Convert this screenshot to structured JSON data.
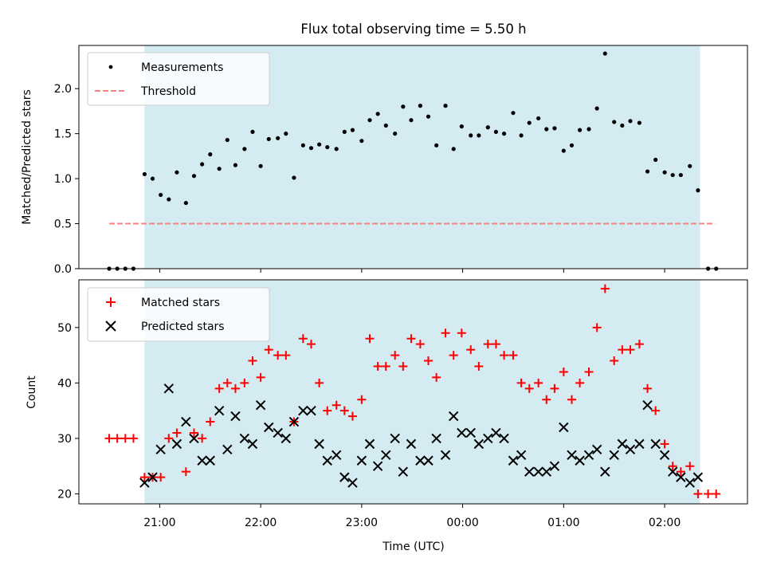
{
  "chart_data": [
    {
      "type": "scatter",
      "title": "Flux total observing time = 5.50 h",
      "ylabel": "Matched/Predicted stars",
      "xlabel": "",
      "ylim": [
        0,
        2.48
      ],
      "yticks": [
        0.0,
        0.5,
        1.0,
        1.5,
        2.0
      ],
      "ytick_labels": [
        "0.0",
        "0.5",
        "1.0",
        "1.5",
        "2.0"
      ],
      "x_range_hours": [
        -3.8,
        2.82
      ],
      "observing_window": [
        -3.15,
        2.35
      ],
      "threshold": {
        "value": 0.5,
        "x_range": [
          -3.5,
          2.5
        ]
      },
      "legend": {
        "placement": "top-left",
        "entries": [
          "Measurements",
          "Threshold"
        ]
      },
      "colors": {
        "measurements": "#000000",
        "threshold": "#ff7f7f",
        "window": "#add8e6"
      },
      "series": [
        {
          "name": "Measurements",
          "points": [
            [
              -3.5,
              0
            ],
            [
              -3.42,
              0
            ],
            [
              -3.34,
              0
            ],
            [
              -3.26,
              0
            ],
            [
              -3.15,
              1.05
            ],
            [
              -3.07,
              1.0
            ],
            [
              -2.99,
              0.82
            ],
            [
              -2.91,
              0.77
            ],
            [
              -2.83,
              1.07
            ],
            [
              -2.74,
              0.73
            ],
            [
              -2.66,
              1.03
            ],
            [
              -2.58,
              1.16
            ],
            [
              -2.5,
              1.27
            ],
            [
              -2.41,
              1.11
            ],
            [
              -2.33,
              1.43
            ],
            [
              -2.25,
              1.15
            ],
            [
              -2.16,
              1.33
            ],
            [
              -2.08,
              1.52
            ],
            [
              -2.0,
              1.14
            ],
            [
              -1.92,
              1.44
            ],
            [
              -1.83,
              1.45
            ],
            [
              -1.75,
              1.5
            ],
            [
              -1.67,
              1.01
            ],
            [
              -1.58,
              1.37
            ],
            [
              -1.5,
              1.34
            ],
            [
              -1.42,
              1.38
            ],
            [
              -1.34,
              1.35
            ],
            [
              -1.25,
              1.33
            ],
            [
              -1.17,
              1.52
            ],
            [
              -1.09,
              1.54
            ],
            [
              -1.0,
              1.42
            ],
            [
              -0.92,
              1.65
            ],
            [
              -0.84,
              1.72
            ],
            [
              -0.76,
              1.59
            ],
            [
              -0.67,
              1.5
            ],
            [
              -0.59,
              1.8
            ],
            [
              -0.51,
              1.65
            ],
            [
              -0.42,
              1.81
            ],
            [
              -0.34,
              1.69
            ],
            [
              -0.26,
              1.37
            ],
            [
              -0.17,
              1.81
            ],
            [
              -0.09,
              1.33
            ],
            [
              -0.01,
              1.58
            ],
            [
              0.08,
              1.48
            ],
            [
              0.16,
              1.48
            ],
            [
              0.25,
              1.57
            ],
            [
              0.33,
              1.52
            ],
            [
              0.41,
              1.5
            ],
            [
              0.5,
              1.73
            ],
            [
              0.58,
              1.48
            ],
            [
              0.66,
              1.62
            ],
            [
              0.75,
              1.67
            ],
            [
              0.83,
              1.55
            ],
            [
              0.91,
              1.56
            ],
            [
              1.0,
              1.31
            ],
            [
              1.08,
              1.37
            ],
            [
              1.16,
              1.54
            ],
            [
              1.25,
              1.55
            ],
            [
              1.33,
              1.78
            ],
            [
              1.41,
              2.39
            ],
            [
              1.5,
              1.63
            ],
            [
              1.58,
              1.59
            ],
            [
              1.66,
              1.64
            ],
            [
              1.75,
              1.62
            ],
            [
              1.83,
              1.08
            ],
            [
              1.91,
              1.21
            ],
            [
              2.0,
              1.07
            ],
            [
              2.08,
              1.04
            ],
            [
              2.16,
              1.04
            ],
            [
              2.25,
              1.14
            ],
            [
              2.33,
              0.87
            ],
            [
              2.43,
              0
            ],
            [
              2.51,
              0
            ]
          ]
        }
      ]
    },
    {
      "type": "scatter",
      "ylabel": "Count",
      "xlabel": "Time (UTC)",
      "ylim": [
        18.2,
        58.6
      ],
      "yticks": [
        20,
        30,
        40,
        50
      ],
      "ytick_labels": [
        "20",
        "30",
        "40",
        "50"
      ],
      "x_range_hours": [
        -3.8,
        2.82
      ],
      "xticks_hours": [
        -3,
        -2,
        -1,
        0,
        1,
        2
      ],
      "xtick_labels": [
        "21:00",
        "22:00",
        "23:00",
        "00:00",
        "01:00",
        "02:00"
      ],
      "observing_window": [
        -3.15,
        2.35
      ],
      "legend": {
        "placement": "top-left",
        "entries": [
          "Matched stars",
          "Predicted stars"
        ]
      },
      "colors": {
        "matched": "#ff0000",
        "predicted": "#000000",
        "window": "#add8e6"
      },
      "series": [
        {
          "name": "Matched stars",
          "marker": "plus",
          "points": [
            [
              -3.5,
              30
            ],
            [
              -3.42,
              30
            ],
            [
              -3.34,
              30
            ],
            [
              -3.26,
              30
            ],
            [
              -3.15,
              23
            ],
            [
              -3.07,
              23
            ],
            [
              -2.99,
              23
            ],
            [
              -2.91,
              30
            ],
            [
              -2.83,
              31
            ],
            [
              -2.74,
              24
            ],
            [
              -2.66,
              31
            ],
            [
              -2.58,
              30
            ],
            [
              -2.5,
              33
            ],
            [
              -2.41,
              39
            ],
            [
              -2.33,
              40
            ],
            [
              -2.25,
              39
            ],
            [
              -2.16,
              40
            ],
            [
              -2.08,
              44
            ],
            [
              -2.0,
              41
            ],
            [
              -1.92,
              46
            ],
            [
              -1.83,
              45
            ],
            [
              -1.75,
              45
            ],
            [
              -1.67,
              33
            ],
            [
              -1.58,
              48
            ],
            [
              -1.5,
              47
            ],
            [
              -1.42,
              40
            ],
            [
              -1.34,
              35
            ],
            [
              -1.25,
              36
            ],
            [
              -1.17,
              35
            ],
            [
              -1.09,
              34
            ],
            [
              -1.0,
              37
            ],
            [
              -0.92,
              48
            ],
            [
              -0.84,
              43
            ],
            [
              -0.76,
              43
            ],
            [
              -0.67,
              45
            ],
            [
              -0.59,
              43
            ],
            [
              -0.51,
              48
            ],
            [
              -0.42,
              47
            ],
            [
              -0.34,
              44
            ],
            [
              -0.26,
              41
            ],
            [
              -0.17,
              49
            ],
            [
              -0.09,
              45
            ],
            [
              -0.01,
              49
            ],
            [
              0.08,
              46
            ],
            [
              0.16,
              43
            ],
            [
              0.25,
              47
            ],
            [
              0.33,
              47
            ],
            [
              0.41,
              45
            ],
            [
              0.5,
              45
            ],
            [
              0.58,
              40
            ],
            [
              0.66,
              39
            ],
            [
              0.75,
              40
            ],
            [
              0.83,
              37
            ],
            [
              0.91,
              39
            ],
            [
              1.0,
              42
            ],
            [
              1.08,
              37
            ],
            [
              1.16,
              40
            ],
            [
              1.25,
              42
            ],
            [
              1.33,
              50
            ],
            [
              1.41,
              57
            ],
            [
              1.5,
              44
            ],
            [
              1.58,
              46
            ],
            [
              1.66,
              46
            ],
            [
              1.75,
              47
            ],
            [
              1.83,
              39
            ],
            [
              1.91,
              35
            ],
            [
              2.0,
              29
            ],
            [
              2.08,
              25
            ],
            [
              2.16,
              24
            ],
            [
              2.25,
              25
            ],
            [
              2.33,
              20
            ],
            [
              2.43,
              20
            ],
            [
              2.51,
              20
            ]
          ]
        },
        {
          "name": "Predicted stars",
          "marker": "x",
          "points": [
            [
              -3.15,
              22
            ],
            [
              -3.07,
              23
            ],
            [
              -2.99,
              28
            ],
            [
              -2.91,
              39
            ],
            [
              -2.83,
              29
            ],
            [
              -2.74,
              33
            ],
            [
              -2.66,
              30
            ],
            [
              -2.58,
              26
            ],
            [
              -2.5,
              26
            ],
            [
              -2.41,
              35
            ],
            [
              -2.33,
              28
            ],
            [
              -2.25,
              34
            ],
            [
              -2.16,
              30
            ],
            [
              -2.08,
              29
            ],
            [
              -2.0,
              36
            ],
            [
              -1.92,
              32
            ],
            [
              -1.83,
              31
            ],
            [
              -1.75,
              30
            ],
            [
              -1.67,
              33
            ],
            [
              -1.58,
              35
            ],
            [
              -1.5,
              35
            ],
            [
              -1.42,
              29
            ],
            [
              -1.34,
              26
            ],
            [
              -1.25,
              27
            ],
            [
              -1.17,
              23
            ],
            [
              -1.09,
              22
            ],
            [
              -1.0,
              26
            ],
            [
              -0.92,
              29
            ],
            [
              -0.84,
              25
            ],
            [
              -0.76,
              27
            ],
            [
              -0.67,
              30
            ],
            [
              -0.59,
              24
            ],
            [
              -0.51,
              29
            ],
            [
              -0.42,
              26
            ],
            [
              -0.34,
              26
            ],
            [
              -0.26,
              30
            ],
            [
              -0.17,
              27
            ],
            [
              -0.09,
              34
            ],
            [
              -0.01,
              31
            ],
            [
              0.08,
              31
            ],
            [
              0.16,
              29
            ],
            [
              0.25,
              30
            ],
            [
              0.33,
              31
            ],
            [
              0.41,
              30
            ],
            [
              0.5,
              26
            ],
            [
              0.58,
              27
            ],
            [
              0.66,
              24
            ],
            [
              0.75,
              24
            ],
            [
              0.83,
              24
            ],
            [
              0.91,
              25
            ],
            [
              1.0,
              32
            ],
            [
              1.08,
              27
            ],
            [
              1.16,
              26
            ],
            [
              1.25,
              27
            ],
            [
              1.33,
              28
            ],
            [
              1.41,
              24
            ],
            [
              1.5,
              27
            ],
            [
              1.58,
              29
            ],
            [
              1.66,
              28
            ],
            [
              1.75,
              29
            ],
            [
              1.83,
              36
            ],
            [
              1.91,
              29
            ],
            [
              2.0,
              27
            ],
            [
              2.08,
              24
            ],
            [
              2.16,
              23
            ],
            [
              2.25,
              22
            ],
            [
              2.33,
              23
            ]
          ]
        }
      ]
    }
  ]
}
